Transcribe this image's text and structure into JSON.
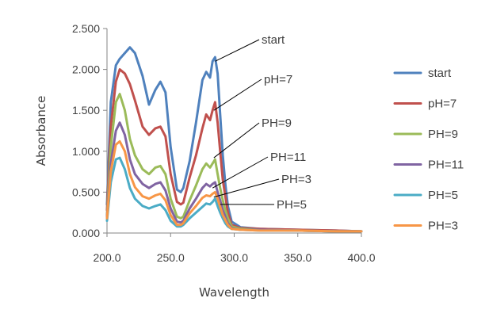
{
  "chart_data": {
    "type": "line",
    "title": "",
    "xlabel": "Wavelength",
    "ylabel": "Absorbance",
    "xlim": [
      200,
      400
    ],
    "ylim": [
      0,
      2.5
    ],
    "x_ticks": [
      200,
      250,
      300,
      350,
      400
    ],
    "y_ticks": [
      0,
      0.5,
      1,
      1.5,
      2,
      2.5
    ],
    "x_tick_labels": [
      "200.0",
      "250.0",
      "300.0",
      "350.0",
      "400.0"
    ],
    "y_tick_labels": [
      "0.000",
      "0.500",
      "1.000",
      "1.500",
      "2.000",
      "2.500"
    ],
    "grid": "none",
    "legend_position": "right",
    "x": [
      200,
      203,
      207,
      210,
      214,
      218,
      222,
      228,
      233,
      238,
      242,
      246,
      250,
      255,
      258,
      260,
      265,
      270,
      275,
      278,
      281,
      283,
      285,
      287,
      289,
      291,
      293,
      295,
      298,
      305,
      320,
      350,
      380,
      400
    ],
    "series": [
      {
        "name": "start",
        "color": "#4f81bd",
        "values": [
          0.35,
          1.6,
          2.05,
          2.13,
          2.2,
          2.27,
          2.2,
          1.92,
          1.57,
          1.75,
          1.85,
          1.72,
          1.05,
          0.53,
          0.5,
          0.55,
          0.88,
          1.35,
          1.87,
          1.97,
          1.9,
          2.1,
          2.15,
          1.95,
          1.45,
          0.95,
          0.6,
          0.33,
          0.14,
          0.07,
          0.05,
          0.04,
          0.03,
          0.02
        ]
      },
      {
        "name": "pH=7",
        "color": "#c0504d",
        "values": [
          0.28,
          1.3,
          1.85,
          2.0,
          1.95,
          1.82,
          1.62,
          1.3,
          1.2,
          1.28,
          1.3,
          1.18,
          0.72,
          0.38,
          0.35,
          0.37,
          0.68,
          0.95,
          1.28,
          1.45,
          1.38,
          1.5,
          1.6,
          1.35,
          1.0,
          0.65,
          0.45,
          0.25,
          0.1,
          0.06,
          0.05,
          0.04,
          0.03,
          0.02
        ]
      },
      {
        "name": "PH=9",
        "color": "#9bbb59",
        "values": [
          0.22,
          1.05,
          1.6,
          1.7,
          1.5,
          1.15,
          0.95,
          0.78,
          0.72,
          0.8,
          0.82,
          0.72,
          0.42,
          0.2,
          0.18,
          0.2,
          0.4,
          0.58,
          0.78,
          0.85,
          0.8,
          0.85,
          0.9,
          0.72,
          0.55,
          0.4,
          0.28,
          0.18,
          0.08,
          0.05,
          0.04,
          0.03,
          0.02,
          0.02
        ]
      },
      {
        "name": "PH=11",
        "color": "#8064a2",
        "values": [
          0.2,
          0.85,
          1.25,
          1.35,
          1.2,
          0.9,
          0.72,
          0.6,
          0.55,
          0.6,
          0.62,
          0.52,
          0.3,
          0.14,
          0.13,
          0.15,
          0.3,
          0.42,
          0.55,
          0.6,
          0.57,
          0.6,
          0.62,
          0.5,
          0.4,
          0.28,
          0.2,
          0.12,
          0.06,
          0.04,
          0.04,
          0.03,
          0.02,
          0.02
        ]
      },
      {
        "name": "PH=5",
        "color": "#4bacc6",
        "values": [
          0.15,
          0.62,
          0.9,
          0.92,
          0.78,
          0.55,
          0.42,
          0.33,
          0.3,
          0.33,
          0.35,
          0.28,
          0.15,
          0.08,
          0.08,
          0.1,
          0.18,
          0.25,
          0.32,
          0.36,
          0.35,
          0.38,
          0.42,
          0.33,
          0.25,
          0.18,
          0.12,
          0.08,
          0.05,
          0.04,
          0.03,
          0.03,
          0.02,
          0.02
        ]
      },
      {
        "name": "PH=3",
        "color": "#f79646",
        "values": [
          0.18,
          0.75,
          1.08,
          1.12,
          1.0,
          0.72,
          0.56,
          0.45,
          0.42,
          0.46,
          0.48,
          0.4,
          0.22,
          0.1,
          0.1,
          0.12,
          0.24,
          0.33,
          0.43,
          0.46,
          0.45,
          0.48,
          0.5,
          0.42,
          0.32,
          0.22,
          0.16,
          0.1,
          0.05,
          0.04,
          0.03,
          0.03,
          0.02,
          0.02
        ]
      }
    ],
    "annotations": [
      {
        "text": "start",
        "series": "start",
        "target_x": 285,
        "target_y": 2.1
      },
      {
        "text": "pH=7",
        "series": "pH=7",
        "target_x": 284,
        "target_y": 1.5
      },
      {
        "text": "PH=9",
        "series": "PH=9",
        "target_x": 284,
        "target_y": 0.92
      },
      {
        "text": "PH=11",
        "series": "PH=11",
        "target_x": 283,
        "target_y": 0.55
      },
      {
        "text": "PH=3",
        "series": "PH=3",
        "target_x": 284,
        "target_y": 0.44
      },
      {
        "text": "PH=5",
        "series": "PH=5",
        "target_x": 289,
        "target_y": 0.35
      }
    ]
  }
}
